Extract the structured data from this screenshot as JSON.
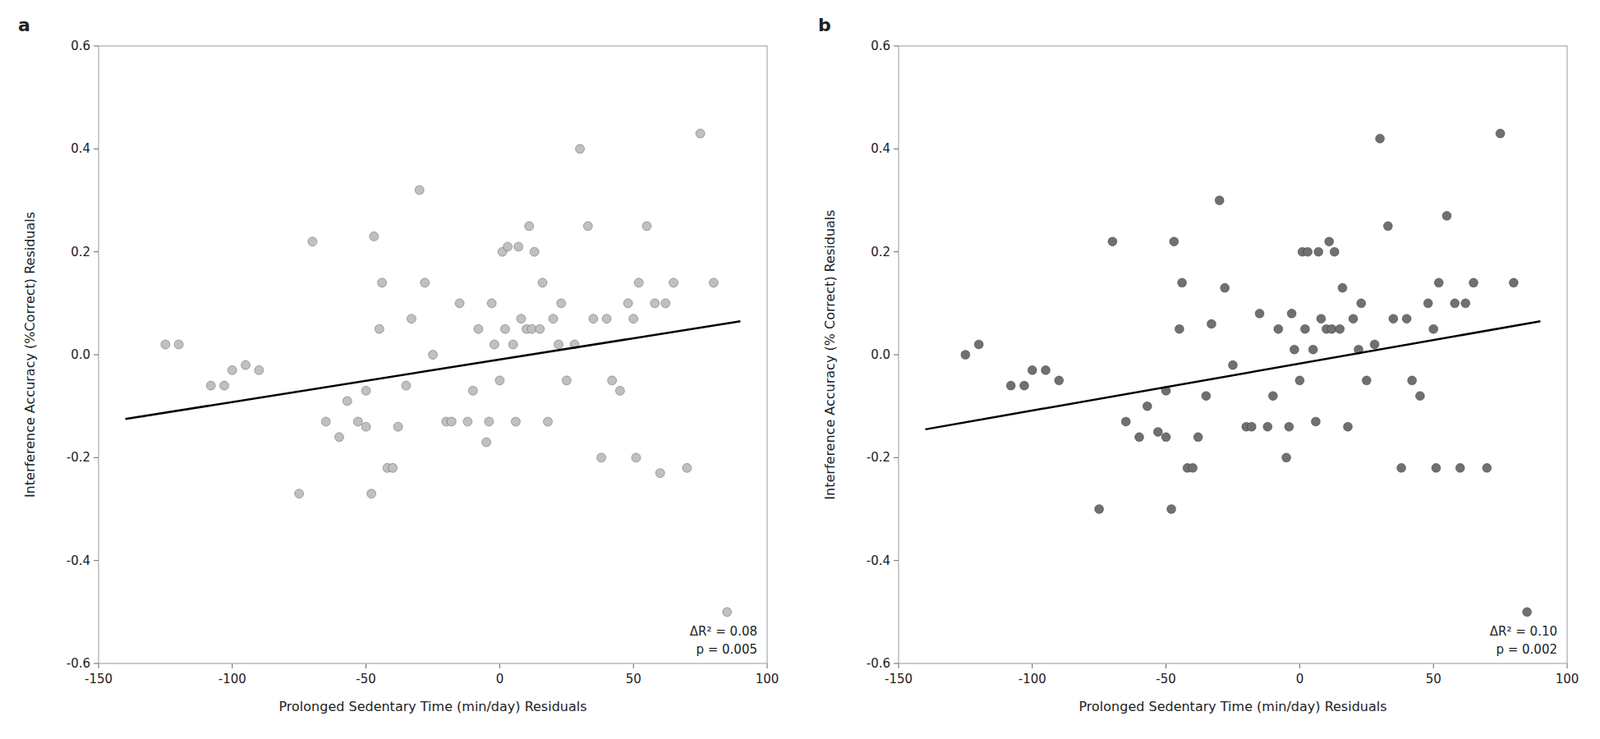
{
  "chart_data": [
    {
      "type": "scatter",
      "title": "a",
      "x_label": "Prolonged Sedentary Time (min/day) Residuals",
      "y_label": "Interference Accuracy (%Correct) Residuals",
      "annotation": "ΔR² = 0.08\np = 0.005",
      "xlim": [
        -150,
        100
      ],
      "ylim": [
        -0.6,
        0.6
      ],
      "xticks": [
        -150,
        -100,
        -50,
        0,
        50,
        100
      ],
      "yticks": [
        -0.6,
        -0.4,
        -0.2,
        {
          "value": 0,
          "label": "0.0"
        },
        0.2,
        0.4,
        0.6
      ],
      "grid": false,
      "series": [
        {
          "type": "scatter",
          "marker": "circle",
          "color": "#c0c0c0",
          "x": [
            -125,
            -120,
            -108,
            -103,
            -100,
            -95,
            -90,
            -75,
            -70,
            -65,
            -60,
            -57,
            -53,
            -50,
            -50,
            -48,
            -47,
            -45,
            -44,
            -42,
            -40,
            -38,
            -35,
            -33,
            -30,
            -28,
            -25,
            -20,
            -18,
            -15,
            -12,
            -10,
            -8,
            -5,
            -4,
            -3,
            -2,
            0,
            1,
            2,
            3,
            5,
            6,
            7,
            8,
            10,
            11,
            12,
            13,
            15,
            16,
            18,
            20,
            22,
            23,
            25,
            28,
            30,
            33,
            35,
            38,
            40,
            42,
            45,
            48,
            50,
            51,
            52,
            55,
            58,
            60,
            62,
            65,
            70,
            75,
            80,
            85
          ],
          "values": [
            0.02,
            0.02,
            -0.06,
            -0.06,
            -0.03,
            -0.02,
            -0.03,
            -0.27,
            0.22,
            -0.13,
            -0.16,
            -0.09,
            -0.13,
            -0.07,
            -0.14,
            -0.27,
            0.23,
            0.05,
            0.14,
            -0.22,
            -0.22,
            -0.14,
            -0.06,
            0.07,
            0.32,
            0.14,
            0.0,
            -0.13,
            -0.13,
            0.1,
            -0.13,
            -0.07,
            0.05,
            -0.17,
            -0.13,
            0.1,
            0.02,
            -0.05,
            0.2,
            0.05,
            0.21,
            0.02,
            -0.13,
            0.21,
            0.07,
            0.05,
            0.25,
            0.05,
            0.2,
            0.05,
            0.14,
            -0.13,
            0.07,
            0.02,
            0.1,
            -0.05,
            0.02,
            0.4,
            0.25,
            0.07,
            -0.2,
            0.07,
            -0.05,
            -0.07,
            0.1,
            0.07,
            -0.2,
            0.14,
            0.25,
            0.1,
            -0.23,
            0.1,
            0.14,
            -0.22,
            0.43,
            0.14,
            -0.5
          ]
        },
        {
          "type": "line",
          "line_style": "solid",
          "color": "#000000",
          "x": [
            -140,
            90
          ],
          "values": [
            -0.125,
            0.065
          ]
        }
      ]
    },
    {
      "type": "scatter",
      "title": "b",
      "x_label": "Prolonged Sedentary Time (min/day) Residuals",
      "y_label": "Interference Accuracy (% Correct) Residuals",
      "annotation": "ΔR² = 0.10\np = 0.002",
      "xlim": [
        -150,
        100
      ],
      "ylim": [
        -0.6,
        0.6
      ],
      "xticks": [
        -150,
        -100,
        -50,
        0,
        50,
        100
      ],
      "yticks": [
        -0.6,
        -0.4,
        -0.2,
        {
          "value": 0,
          "label": "0.0"
        },
        0.2,
        0.4,
        0.6
      ],
      "grid": false,
      "series": [
        {
          "type": "scatter",
          "marker": "circle",
          "color": "#707070",
          "x": [
            -125,
            -120,
            -108,
            -103,
            -100,
            -95,
            -90,
            -75,
            -70,
            -65,
            -60,
            -57,
            -53,
            -50,
            -50,
            -48,
            -47,
            -45,
            -44,
            -42,
            -40,
            -38,
            -35,
            -33,
            -30,
            -28,
            -25,
            -20,
            -18,
            -15,
            -12,
            -10,
            -8,
            -5,
            -4,
            -3,
            -2,
            0,
            1,
            2,
            3,
            5,
            6,
            7,
            8,
            10,
            11,
            12,
            13,
            15,
            16,
            18,
            20,
            22,
            23,
            25,
            28,
            30,
            33,
            35,
            38,
            40,
            42,
            45,
            48,
            50,
            51,
            52,
            55,
            58,
            60,
            62,
            65,
            70,
            75,
            80,
            85
          ],
          "values": [
            0.0,
            0.02,
            -0.06,
            -0.06,
            -0.03,
            -0.03,
            -0.05,
            -0.3,
            0.22,
            -0.13,
            -0.16,
            -0.1,
            -0.15,
            -0.07,
            -0.16,
            -0.3,
            0.22,
            0.05,
            0.14,
            -0.22,
            -0.22,
            -0.16,
            -0.08,
            0.06,
            0.3,
            0.13,
            -0.02,
            -0.14,
            -0.14,
            0.08,
            -0.14,
            -0.08,
            0.05,
            -0.2,
            -0.14,
            0.08,
            0.01,
            -0.05,
            0.2,
            0.05,
            0.2,
            0.01,
            -0.13,
            0.2,
            0.07,
            0.05,
            0.22,
            0.05,
            0.2,
            0.05,
            0.13,
            -0.14,
            0.07,
            0.01,
            0.1,
            -0.05,
            0.02,
            0.42,
            0.25,
            0.07,
            -0.22,
            0.07,
            -0.05,
            -0.08,
            0.1,
            0.05,
            -0.22,
            0.14,
            0.27,
            0.1,
            -0.22,
            0.1,
            0.14,
            -0.22,
            0.43,
            0.14,
            -0.5
          ]
        },
        {
          "type": "line",
          "line_style": "solid",
          "color": "#000000",
          "x": [
            -140,
            90
          ],
          "values": [
            -0.145,
            0.065
          ]
        }
      ]
    }
  ]
}
